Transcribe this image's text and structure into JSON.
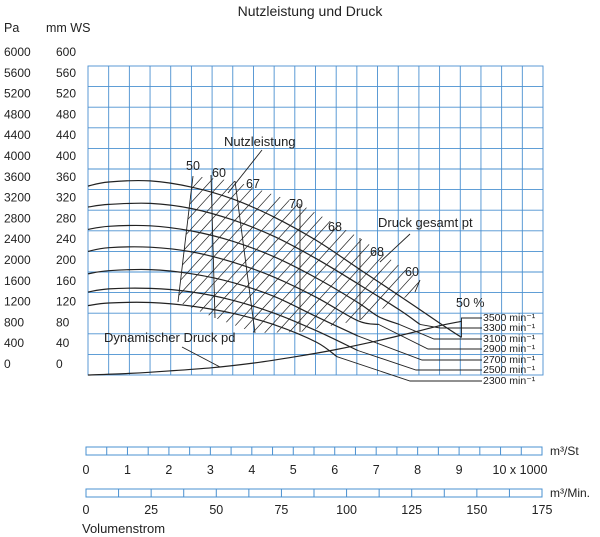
{
  "chart_data": {
    "type": "line",
    "title": "Nutzleistung und Druck",
    "pressure_units": [
      "Pa",
      "mm WS"
    ],
    "pa_ticks": [
      "0",
      "400",
      "800",
      "1200",
      "1600",
      "2000",
      "2400",
      "2800",
      "3200",
      "3600",
      "4000",
      "4400",
      "4800",
      "5200",
      "5600",
      "6000"
    ],
    "mmws_ticks": [
      "0",
      "40",
      "80",
      "120",
      "160",
      "200",
      "240",
      "280",
      "320",
      "360",
      "400",
      "440",
      "480",
      "520",
      "560",
      "600"
    ],
    "x_axes": [
      {
        "unit": "m³/St",
        "ticks": [
          "0",
          "1",
          "2",
          "3",
          "4",
          "5",
          "6",
          "7",
          "8",
          "9",
          "10 x 1000"
        ]
      },
      {
        "unit": "m³/Min.",
        "ticks": [
          "0",
          "25",
          "50",
          "75",
          "100",
          "125",
          "150",
          "175"
        ]
      }
    ],
    "xlabel": "Volumenstrom",
    "xlim_m3_per_hour": [
      0,
      11000
    ],
    "ylim_mm_ws": [
      0,
      600
    ],
    "series": [
      {
        "name": "3500 min⁻¹",
        "x_m3h": [
          0,
          500,
          1500,
          2500,
          3500,
          4500,
          5500,
          6500,
          7500,
          8500,
          9000
        ],
        "y_mmws": [
          362,
          370,
          372,
          360,
          337,
          302,
          258,
          205,
          152,
          98,
          72
        ]
      },
      {
        "name": "3300 min⁻¹",
        "x_m3h": [
          0,
          500,
          1500,
          2500,
          3500,
          4500,
          5500,
          6500,
          7500,
          8000
        ],
        "y_mmws": [
          322,
          327,
          329,
          319,
          297,
          265,
          223,
          175,
          125,
          97
        ]
      },
      {
        "name": "3100 min⁻¹",
        "x_m3h": [
          0,
          500,
          1500,
          2500,
          3500,
          4500,
          5500,
          6500,
          7000,
          7500
        ],
        "y_mmws": [
          279,
          285,
          286,
          276,
          256,
          226,
          186,
          139,
          112,
          97
        ]
      },
      {
        "name": "2900 min⁻¹",
        "x_m3h": [
          0,
          500,
          1500,
          2500,
          3500,
          4500,
          5500,
          6500,
          7000
        ],
        "y_mmws": [
          237,
          244,
          245,
          236,
          216,
          187,
          149,
          104,
          97
        ]
      },
      {
        "name": "2700 min⁻¹",
        "x_m3h": [
          0,
          500,
          1500,
          2500,
          3500,
          4500,
          5500,
          6500
        ],
        "y_mmws": [
          194,
          200,
          202,
          194,
          177,
          150,
          112,
          75
        ]
      },
      {
        "name": "2500 min⁻¹",
        "x_m3h": [
          0,
          500,
          1500,
          2500,
          3500,
          4500,
          5500,
          6500
        ],
        "y_mmws": [
          159,
          165,
          166,
          159,
          143,
          118,
          85,
          47
        ]
      },
      {
        "name": "2300 min⁻¹",
        "x_m3h": [
          0,
          500,
          1500,
          2500,
          3500,
          4500,
          5500,
          6000
        ],
        "y_mmws": [
          133,
          138,
          139,
          132,
          118,
          96,
          63,
          35
        ]
      },
      {
        "name": "Dynamischer Druck pd",
        "x_m3h": [
          0,
          1000,
          2000,
          3000,
          4000,
          5000,
          6000,
          7000,
          8000,
          8500,
          9000
        ],
        "y_mmws": [
          0,
          3,
          8,
          14,
          23,
          35,
          49,
          66,
          85,
          95,
          103
        ]
      }
    ],
    "efficiency_labels": [
      "50",
      "60",
      "67",
      "70",
      "68",
      "68",
      "60",
      "50 %"
    ],
    "annotations": [
      "Nutzleistung",
      "Druck gesamt pt",
      "Dynamischer Druck pd"
    ],
    "grid": true
  }
}
